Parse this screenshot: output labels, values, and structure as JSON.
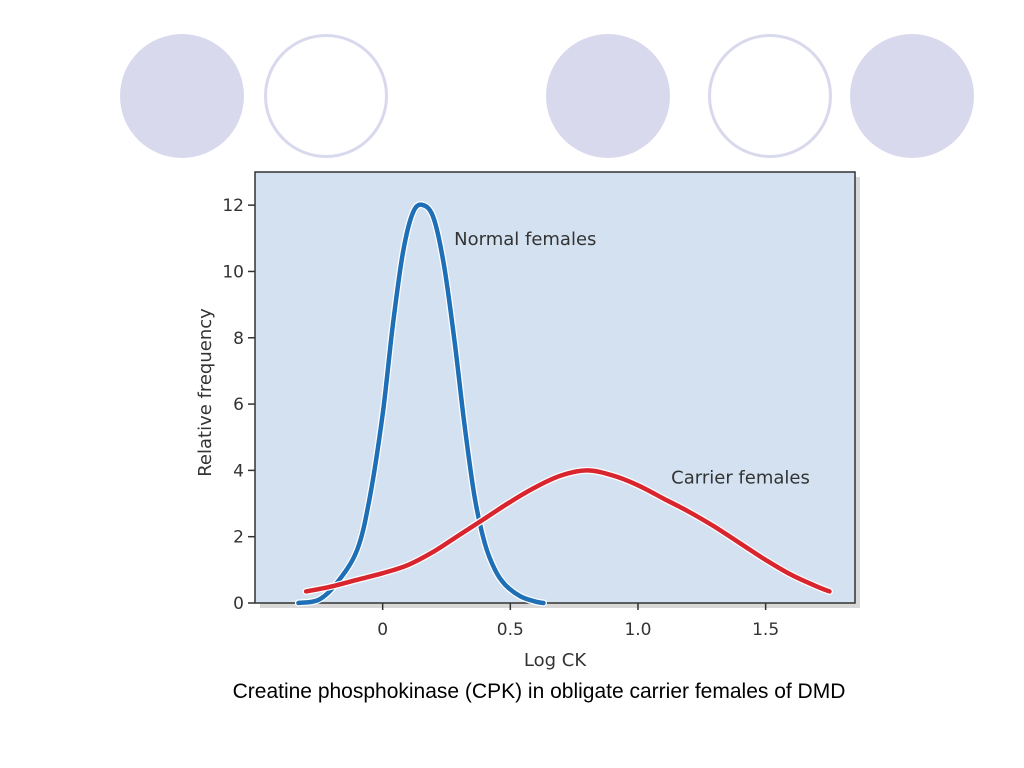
{
  "slide": {
    "caption": "Creatine phosphokinase (CPK) in obligate carrier females of DMD",
    "decorations": {
      "circles": [
        "filled",
        "outline",
        "filled",
        "outline",
        "filled"
      ],
      "colors": {
        "circle_fill": "#d9d9ee",
        "circle_stroke": "#d9d9ee"
      }
    }
  },
  "chart_data": {
    "type": "line",
    "title": "",
    "xlabel": "Log CK",
    "ylabel": "Relative frequency",
    "xlim": [
      -0.5,
      1.85
    ],
    "ylim": [
      0,
      13
    ],
    "xticks": [
      0,
      0.5,
      1.0,
      1.5
    ],
    "xtick_labels": [
      "0",
      "0.5",
      "1.0",
      "1.5"
    ],
    "yticks": [
      0,
      2,
      4,
      6,
      8,
      10,
      12
    ],
    "ytick_labels": [
      "0",
      "2",
      "4",
      "6",
      "8",
      "10",
      "12"
    ],
    "grid": false,
    "legend": "none",
    "background": "#d3e1f1",
    "series": [
      {
        "name": "Normal females",
        "color": "#1e6fb5",
        "x": [
          -0.33,
          -0.25,
          -0.18,
          -0.1,
          -0.05,
          0.0,
          0.04,
          0.08,
          0.12,
          0.16,
          0.2,
          0.24,
          0.28,
          0.32,
          0.36,
          0.4,
          0.44,
          0.48,
          0.54,
          0.6,
          0.63
        ],
        "y": [
          0,
          0.1,
          0.6,
          1.6,
          3.2,
          5.7,
          8.4,
          10.6,
          11.8,
          12.0,
          11.6,
          10.2,
          8.0,
          5.4,
          3.2,
          1.8,
          1.0,
          0.55,
          0.2,
          0.04,
          0
        ]
      },
      {
        "name": "Carrier females",
        "color": "#d9262e",
        "x": [
          -0.3,
          -0.2,
          -0.1,
          0.0,
          0.1,
          0.2,
          0.3,
          0.4,
          0.5,
          0.6,
          0.7,
          0.8,
          0.9,
          1.0,
          1.1,
          1.2,
          1.3,
          1.4,
          1.5,
          1.6,
          1.7,
          1.75
        ],
        "y": [
          0.35,
          0.5,
          0.7,
          0.9,
          1.15,
          1.55,
          2.05,
          2.55,
          3.05,
          3.5,
          3.85,
          4.0,
          3.85,
          3.55,
          3.15,
          2.75,
          2.3,
          1.8,
          1.3,
          0.85,
          0.5,
          0.35
        ]
      }
    ],
    "annotations": [
      {
        "text": "Normal females",
        "x": 0.28,
        "y": 10.8
      },
      {
        "text": "Carrier females",
        "x": 1.13,
        "y": 3.6
      }
    ]
  }
}
